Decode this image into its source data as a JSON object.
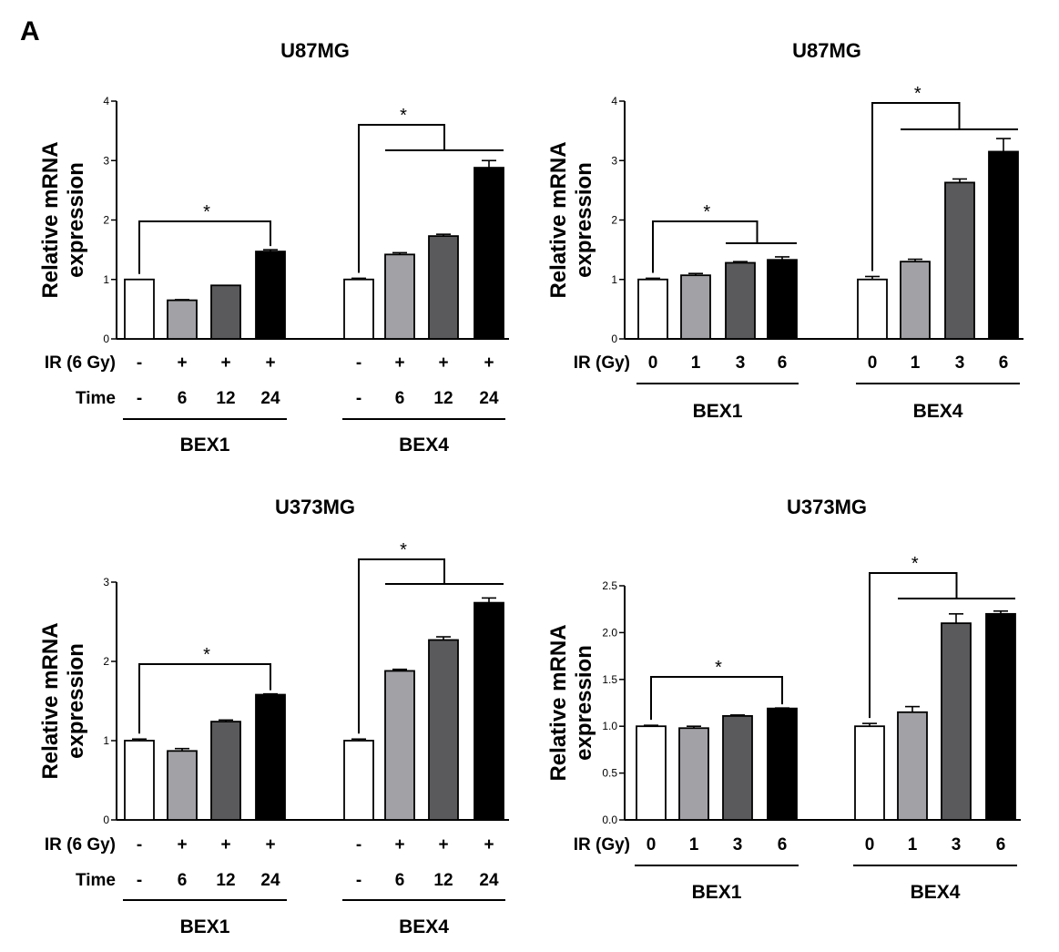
{
  "figure": {
    "panel_label": "A"
  },
  "chart_data": [
    {
      "type": "bar",
      "title": "U87MG",
      "ylabel": "Relative mRNA\nexpression",
      "ylim": [
        0,
        4
      ],
      "yticks": [
        "0",
        "1",
        "2",
        "3",
        "4"
      ],
      "row_labels": [
        "IR (6 Gy)",
        "Time"
      ],
      "groups": [
        {
          "name": "BEX1",
          "conditions": [
            [
              "-",
              "-"
            ],
            [
              "+",
              "6"
            ],
            [
              "+",
              "12"
            ],
            [
              "+",
              "24"
            ]
          ],
          "values": [
            1.0,
            0.65,
            0.9,
            1.47
          ],
          "errors": [
            0,
            0.01,
            0,
            0.03
          ],
          "significance": "*"
        },
        {
          "name": "BEX4",
          "conditions": [
            [
              "-",
              "-"
            ],
            [
              "+",
              "6"
            ],
            [
              "+",
              "12"
            ],
            [
              "+",
              "24"
            ]
          ],
          "values": [
            1.0,
            1.42,
            1.73,
            2.88
          ],
          "errors": [
            0.02,
            0.03,
            0.03,
            0.12
          ],
          "significance": "*"
        }
      ]
    },
    {
      "type": "bar",
      "title": "U87MG",
      "ylabel": "Relative mRNA\nexpression",
      "ylim": [
        0,
        4
      ],
      "yticks": [
        "0",
        "1",
        "2",
        "3",
        "4"
      ],
      "row_labels": [
        "IR (Gy)"
      ],
      "groups": [
        {
          "name": "BEX1",
          "conditions": [
            [
              "0"
            ],
            [
              "1"
            ],
            [
              "3"
            ],
            [
              "6"
            ]
          ],
          "values": [
            1.0,
            1.07,
            1.28,
            1.33
          ],
          "errors": [
            0.02,
            0.03,
            0.02,
            0.05
          ],
          "significance": "*"
        },
        {
          "name": "BEX4",
          "conditions": [
            [
              "0"
            ],
            [
              "1"
            ],
            [
              "3"
            ],
            [
              "6"
            ]
          ],
          "values": [
            1.0,
            1.3,
            2.63,
            3.15
          ],
          "errors": [
            0.05,
            0.04,
            0.06,
            0.22
          ],
          "significance": "*"
        }
      ]
    },
    {
      "type": "bar",
      "title": "U373MG",
      "ylabel": "Relative mRNA\nexpression",
      "ylim": [
        0,
        3
      ],
      "yticks": [
        "0",
        "1",
        "2",
        "3"
      ],
      "row_labels": [
        "IR (6 Gy)",
        "Time"
      ],
      "groups": [
        {
          "name": "BEX1",
          "conditions": [
            [
              "-",
              "-"
            ],
            [
              "+",
              "6"
            ],
            [
              "+",
              "12"
            ],
            [
              "+",
              "24"
            ]
          ],
          "values": [
            1.0,
            0.87,
            1.24,
            1.58
          ],
          "errors": [
            0.02,
            0.03,
            0.02,
            0.01
          ],
          "significance": "*"
        },
        {
          "name": "BEX4",
          "conditions": [
            [
              "-",
              "-"
            ],
            [
              "+",
              "6"
            ],
            [
              "+",
              "12"
            ],
            [
              "+",
              "24"
            ]
          ],
          "values": [
            1.0,
            1.88,
            2.27,
            2.74
          ],
          "errors": [
            0.02,
            0.02,
            0.04,
            0.06
          ],
          "significance": "*"
        }
      ]
    },
    {
      "type": "bar",
      "title": "U373MG",
      "ylabel": "Relative mRNA\nexpression",
      "ylim": [
        0,
        2.5
      ],
      "yticks": [
        "0.0",
        "0.5",
        "1.0",
        "1.5",
        "2.0",
        "2.5"
      ],
      "row_labels": [
        "IR (Gy)"
      ],
      "groups": [
        {
          "name": "BEX1",
          "conditions": [
            [
              "0"
            ],
            [
              "1"
            ],
            [
              "3"
            ],
            [
              "6"
            ]
          ],
          "values": [
            1.0,
            0.98,
            1.11,
            1.19
          ],
          "errors": [
            0.01,
            0.02,
            0.01,
            0.005
          ],
          "significance": "*"
        },
        {
          "name": "BEX4",
          "conditions": [
            [
              "0"
            ],
            [
              "1"
            ],
            [
              "3"
            ],
            [
              "6"
            ]
          ],
          "values": [
            1.0,
            1.15,
            2.1,
            2.2
          ],
          "errors": [
            0.03,
            0.06,
            0.1,
            0.03
          ],
          "significance": "*"
        }
      ]
    }
  ]
}
